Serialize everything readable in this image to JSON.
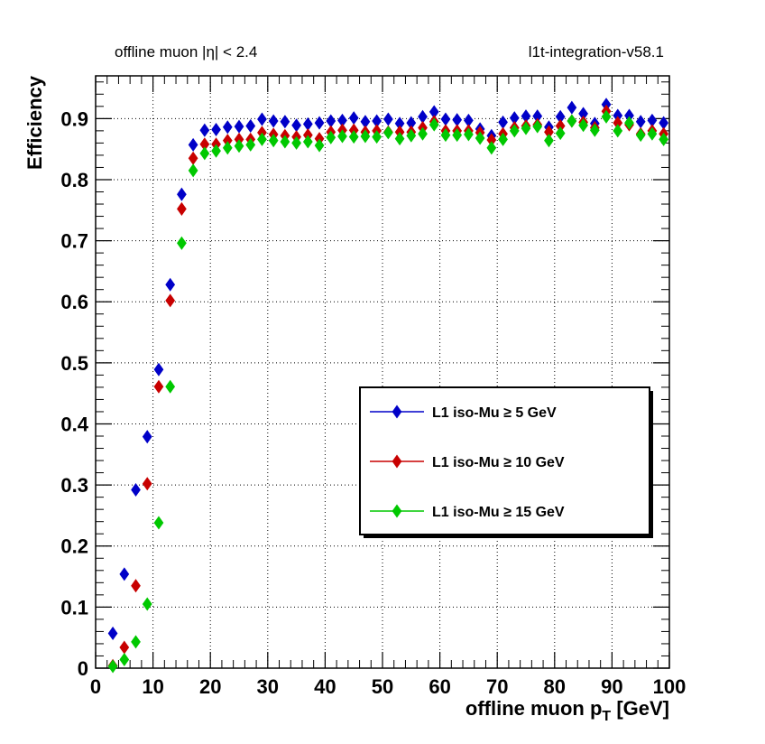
{
  "header": {
    "left": "offline muon |η| < 2.4",
    "right": "l1t-integration-v58.1"
  },
  "chart_data": {
    "type": "scatter",
    "xlabel": "offline muon p",
    "xlabel_sub": "T",
    "xlabel_unit": " [GeV]",
    "ylabel": "Efficiency",
    "xlim": [
      0,
      100
    ],
    "ylim": [
      0,
      0.97
    ],
    "x_ticks": [
      "0",
      "10",
      "20",
      "30",
      "40",
      "50",
      "60",
      "70",
      "80",
      "90",
      "100"
    ],
    "y_ticks": [
      "0",
      "0.1",
      "0.2",
      "0.3",
      "0.4",
      "0.5",
      "0.6",
      "0.7",
      "0.8",
      "0.9"
    ],
    "grid": true,
    "legend_position": "center-right",
    "x": [
      3,
      5,
      7,
      9,
      11,
      13,
      15,
      17,
      19,
      21,
      23,
      25,
      27,
      29,
      31,
      33,
      35,
      37,
      39,
      41,
      43,
      45,
      47,
      49,
      51,
      53,
      55,
      57,
      59,
      61,
      63,
      65,
      67,
      69,
      71,
      73,
      75,
      77,
      79,
      81,
      83,
      85,
      87,
      89,
      91,
      93,
      95,
      97,
      99
    ],
    "series": [
      {
        "name": "L1 iso-Mu ≥ 5 GeV",
        "color": "#0000c8",
        "values": [
          0.057,
          0.154,
          0.292,
          0.379,
          0.489,
          0.628,
          0.776,
          0.857,
          0.881,
          0.882,
          0.886,
          0.887,
          0.888,
          0.899,
          0.896,
          0.895,
          0.889,
          0.891,
          0.893,
          0.896,
          0.897,
          0.901,
          0.895,
          0.896,
          0.899,
          0.892,
          0.893,
          0.903,
          0.911,
          0.899,
          0.898,
          0.897,
          0.883,
          0.872,
          0.894,
          0.901,
          0.904,
          0.904,
          0.886,
          0.903,
          0.918,
          0.908,
          0.892,
          0.923,
          0.905,
          0.905,
          0.895,
          0.897,
          0.893
        ]
      },
      {
        "name": "L1 iso-Mu ≥ 10 GeV",
        "color": "#c80000",
        "values": [
          0.004,
          0.034,
          0.135,
          0.302,
          0.461,
          0.602,
          0.752,
          0.835,
          0.858,
          0.858,
          0.864,
          0.866,
          0.866,
          0.877,
          0.874,
          0.872,
          0.87,
          0.873,
          0.867,
          0.878,
          0.881,
          0.881,
          0.878,
          0.88,
          0.878,
          0.878,
          0.878,
          0.885,
          0.895,
          0.88,
          0.88,
          0.88,
          0.877,
          0.865,
          0.875,
          0.885,
          0.888,
          0.89,
          0.878,
          0.888,
          0.896,
          0.894,
          0.885,
          0.912,
          0.893,
          0.89,
          0.875,
          0.88,
          0.875
        ]
      },
      {
        "name": "L1 iso-Mu ≥ 15 GeV",
        "color": "#00c800",
        "values": [
          0.003,
          0.014,
          0.043,
          0.105,
          0.238,
          0.461,
          0.696,
          0.815,
          0.843,
          0.847,
          0.852,
          0.855,
          0.857,
          0.866,
          0.864,
          0.862,
          0.86,
          0.862,
          0.856,
          0.869,
          0.871,
          0.87,
          0.871,
          0.87,
          0.877,
          0.867,
          0.872,
          0.875,
          0.89,
          0.873,
          0.873,
          0.874,
          0.868,
          0.852,
          0.866,
          0.88,
          0.884,
          0.887,
          0.864,
          0.876,
          0.896,
          0.889,
          0.881,
          0.903,
          0.88,
          0.893,
          0.873,
          0.875,
          0.866
        ]
      }
    ]
  }
}
